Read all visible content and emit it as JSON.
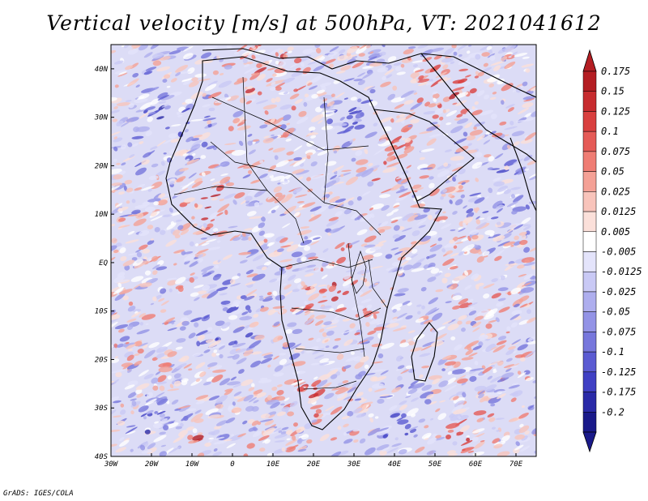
{
  "title": "Vertical velocity [m/s] at 500hPa, VT: 2021041612",
  "credit": "GrADS: IGES/COLA",
  "map": {
    "lon_range": [
      -30,
      75
    ],
    "lat_range": [
      -40,
      45
    ],
    "x_ticks": [
      "30W",
      "20W",
      "10W",
      "0",
      "10E",
      "20E",
      "30E",
      "40E",
      "50E",
      "60E",
      "70E"
    ],
    "y_ticks": [
      "40N",
      "30N",
      "20N",
      "10N",
      "EQ",
      "10S",
      "20S",
      "30S",
      "40S"
    ]
  },
  "colorbar": {
    "labels": [
      "0.175",
      "0.15",
      "0.125",
      "0.1",
      "0.075",
      "0.05",
      "0.025",
      "0.0125",
      "0.005",
      "-0.005",
      "-0.0125",
      "-0.025",
      "-0.05",
      "-0.075",
      "-0.1",
      "-0.125",
      "-0.175",
      "-0.2"
    ],
    "colors": [
      "#b41e23",
      "#c72c2f",
      "#d9403f",
      "#e55b57",
      "#ef7d74",
      "#f4a196",
      "#f8c4bb",
      "#fbe0da",
      "#ffffff",
      "#e4e4fb",
      "#c9c9f5",
      "#aeaeee",
      "#9393e6",
      "#7777dc",
      "#5b5bd2",
      "#4040c4",
      "#2a2aa8",
      "#1a1a8a"
    ]
  },
  "colors": {
    "warm": "#e45a55",
    "cool": "#6f6fe0"
  }
}
